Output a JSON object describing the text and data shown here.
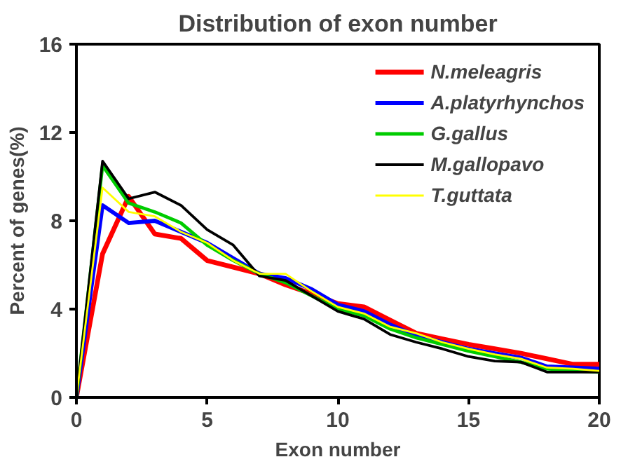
{
  "chart_data": {
    "type": "line",
    "title": "Distribution of exon number",
    "xlabel": "Exon number",
    "ylabel": "Percent of genes(%)",
    "x": [
      0,
      1,
      2,
      3,
      4,
      5,
      6,
      7,
      8,
      9,
      10,
      11,
      12,
      13,
      14,
      15,
      16,
      17,
      18,
      19,
      20
    ],
    "xlim": [
      0,
      20
    ],
    "xticks": [
      0,
      5,
      10,
      15,
      20
    ],
    "ylim": [
      0,
      16
    ],
    "yticks": [
      0,
      4,
      8,
      12,
      16
    ],
    "grid": false,
    "legend": "top right",
    "marker": "none",
    "line_style": "solid",
    "series": [
      {
        "name": "N.meleagris",
        "color": "#ff0000",
        "values": [
          0,
          6.5,
          9.1,
          7.4,
          7.2,
          6.2,
          5.9,
          5.6,
          5.1,
          4.7,
          4.25,
          4.1,
          3.5,
          2.9,
          2.65,
          2.4,
          2.2,
          2.0,
          1.75,
          1.5,
          1.5
        ]
      },
      {
        "name": "A.platyrhynchos",
        "color": "#0000ff",
        "values": [
          0,
          8.7,
          7.9,
          8.0,
          7.5,
          7.0,
          6.3,
          5.6,
          5.4,
          4.9,
          4.2,
          3.9,
          3.3,
          2.8,
          2.5,
          2.2,
          2.0,
          1.8,
          1.4,
          1.35,
          1.3
        ]
      },
      {
        "name": "G.gallus",
        "color": "#00cc00",
        "values": [
          0,
          10.5,
          8.8,
          8.4,
          7.9,
          6.9,
          6.2,
          5.6,
          5.2,
          4.6,
          4.0,
          3.7,
          3.1,
          2.7,
          2.4,
          2.1,
          1.85,
          1.6,
          1.3,
          1.2,
          1.15
        ]
      },
      {
        "name": "M.gallopavo",
        "color": "#000000",
        "values": [
          0,
          10.7,
          9.0,
          9.3,
          8.7,
          7.6,
          6.9,
          5.5,
          5.3,
          4.6,
          3.9,
          3.55,
          2.85,
          2.5,
          2.2,
          1.85,
          1.65,
          1.6,
          1.15,
          1.15,
          1.15
        ]
      },
      {
        "name": "T.guttata",
        "color": "#ffff00",
        "values": [
          0,
          9.5,
          8.4,
          8.2,
          7.5,
          7.0,
          6.2,
          5.6,
          5.6,
          4.8,
          4.1,
          3.8,
          3.2,
          2.9,
          2.5,
          2.2,
          1.95,
          1.75,
          1.35,
          1.3,
          1.2
        ]
      }
    ]
  }
}
